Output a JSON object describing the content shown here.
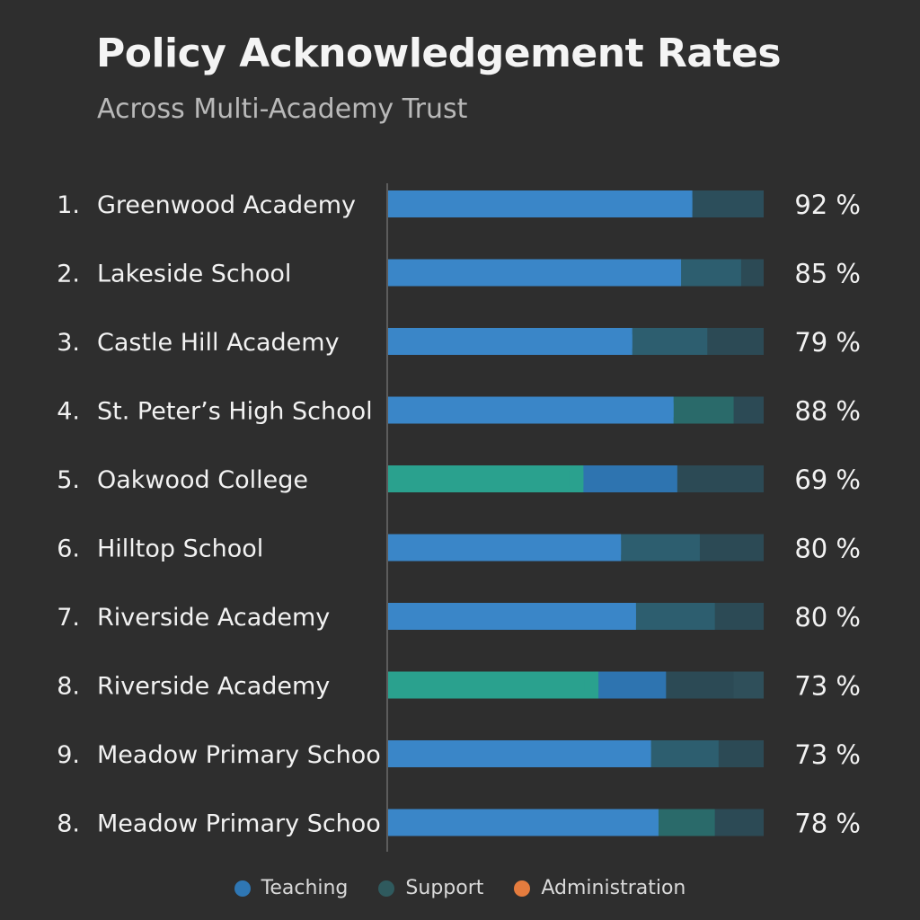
{
  "chart_data": {
    "type": "bar",
    "title": "Policy Acknowledgement Rates",
    "subtitle": "Across Multi-Academy Trust",
    "ranks": [
      "1.",
      "2.",
      "3.",
      "4.",
      "5.",
      "6.",
      "7.",
      "8.",
      "9.",
      "8."
    ],
    "categories": [
      "Greenwood Academy",
      "Lakeside School",
      "Castle Hill Academy",
      "St. Peter’s High School",
      "Oakwood College",
      "Hilltop School",
      "Riverside Academy",
      "Riverside Academy",
      "Meadow Primary Schoo",
      "Meadow Primary Schoo"
    ],
    "value_labels": [
      "92 %",
      "85 %",
      "79 %",
      "88 %",
      "69 %",
      "80 %",
      "80 %",
      "73 %",
      "73 %",
      "78 %"
    ],
    "values": [
      92,
      85,
      79,
      88,
      69,
      80,
      80,
      73,
      73,
      78
    ],
    "segments": [
      [
        {
          "color": "#3a86c8",
          "value": 81
        },
        {
          "color": "#2c4e5b",
          "value": 19
        }
      ],
      [
        {
          "color": "#3a86c8",
          "value": 78
        },
        {
          "color": "#2d5e6f",
          "value": 16
        },
        {
          "color": "#2c4a55",
          "value": 6
        }
      ],
      [
        {
          "color": "#3a86c8",
          "value": 65
        },
        {
          "color": "#2d5e6f",
          "value": 20
        },
        {
          "color": "#2c4a55",
          "value": 15
        }
      ],
      [
        {
          "color": "#3a86c8",
          "value": 76
        },
        {
          "color": "#2a6a6a",
          "value": 16
        },
        {
          "color": "#2c4a55",
          "value": 8
        }
      ],
      [
        {
          "color": "#2aa18e",
          "value": 52
        },
        {
          "color": "#2e74b0",
          "value": 25
        },
        {
          "color": "#2c4a55",
          "value": 23
        }
      ],
      [
        {
          "color": "#3a86c8",
          "value": 62
        },
        {
          "color": "#2d5e6f",
          "value": 21
        },
        {
          "color": "#2c4a55",
          "value": 17
        }
      ],
      [
        {
          "color": "#3a86c8",
          "value": 66
        },
        {
          "color": "#2d5e6f",
          "value": 21
        },
        {
          "color": "#2c4a55",
          "value": 13
        }
      ],
      [
        {
          "color": "#2aa18e",
          "value": 56
        },
        {
          "color": "#2e74b0",
          "value": 18
        },
        {
          "color": "#2c4a55",
          "value": 18
        },
        {
          "color": "#2f4f5a",
          "value": 8
        }
      ],
      [
        {
          "color": "#3a86c8",
          "value": 70
        },
        {
          "color": "#2d5e6f",
          "value": 18
        },
        {
          "color": "#2c4a55",
          "value": 12
        }
      ],
      [
        {
          "color": "#3a86c8",
          "value": 72
        },
        {
          "color": "#2a6a6a",
          "value": 15
        },
        {
          "color": "#2c4a55",
          "value": 13
        }
      ]
    ],
    "legend": [
      {
        "label": "Teaching",
        "color": "#2f77b4"
      },
      {
        "label": "Support",
        "color": "#2f5a5e"
      },
      {
        "label": "Administration",
        "color": "#e57c3e"
      }
    ],
    "legend_position": "bottom-center",
    "grid": false
  }
}
